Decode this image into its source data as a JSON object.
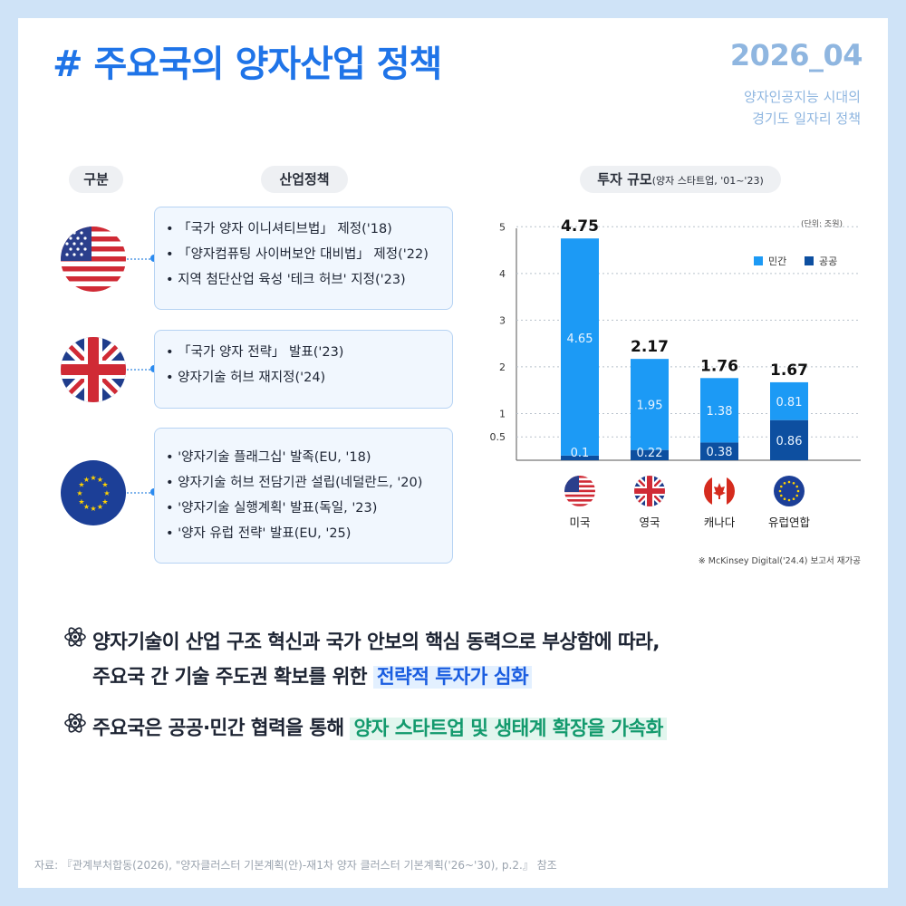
{
  "header": {
    "title": "# 주요국의 양자산업 정책",
    "issue": "2026_04",
    "subtitle_line1": "양자인공지능 시대의",
    "subtitle_line2": "경기도 일자리 정책"
  },
  "column_headers": {
    "category": "구분",
    "policy": "산업정책",
    "investment": "투자 규모",
    "investment_note": "(양자 스타트업, '01~'23)"
  },
  "countries": [
    {
      "flag_icon": "us-flag-icon",
      "policies": [
        "「국가 양자 이니셔티브법」 제정('18)",
        "「양자컴퓨팅 사이버보안 대비법」 제정('22)",
        "지역 첨단산업 육성 '테크 허브' 지정('23)"
      ]
    },
    {
      "flag_icon": "uk-flag-icon",
      "policies": [
        "「국가 양자 전략」 발표('23)",
        "양자기술 허브 재지정('24)"
      ]
    },
    {
      "flag_icon": "eu-flag-icon",
      "policies": [
        "'양자기술 플래그십' 발족(EU, '18)",
        "양자기술 허브 전담기관 설립(네덜란드, '20)",
        "'양자기술 실행계획' 발표(독일, '23)",
        "'양자 유럽 전략' 발표(EU, '25)"
      ]
    }
  ],
  "chart_data": {
    "type": "bar",
    "stacked": true,
    "unit": "(단위: 조원)",
    "categories": [
      "미국",
      "영국",
      "캐나다",
      "유럽연합"
    ],
    "series": [
      {
        "name": "민간",
        "values": [
          4.65,
          1.95,
          1.38,
          0.81
        ],
        "color": "#1c9af5"
      },
      {
        "name": "공공",
        "values": [
          0.1,
          0.22,
          0.38,
          0.86
        ],
        "color": "#0d4fa0"
      }
    ],
    "totals": [
      4.75,
      2.17,
      1.76,
      1.67
    ],
    "y_ticks": [
      0.5,
      1,
      2,
      3,
      4,
      5
    ],
    "ylim": [
      0,
      5.2
    ],
    "grid": true,
    "legend_position": "top-right",
    "source_note": "※ McKinsey Digital('24.4) 보고서 재가공"
  },
  "bullets": {
    "line1_a": "양자기술이 산업 구조 혁신과 국가 안보의 핵심 동력으로 부상함에 따라,",
    "line1_b": "주요국 간 기술 주도권 확보를 위한 ",
    "line1_highlight": "전략적 투자가 심화",
    "line2_a": "주요국은 공공·민간 협력을 통해 ",
    "line2_highlight": "양자 스타트업 및 생태계 확장을 가속화"
  },
  "footer_source": "자료: 『관계부처합동(2026), \"양자클러스터 기본계획(안)-재1차 양자 클러스터 기본계획('26~'30), p.2.』 참조"
}
